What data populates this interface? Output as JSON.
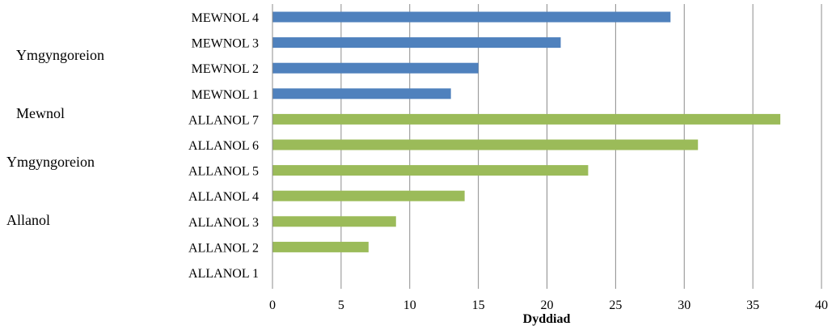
{
  "chart_data": {
    "type": "bar",
    "orientation": "horizontal",
    "title": "",
    "xlabel": "Dyddiad",
    "ylabel": "",
    "xlim": [
      0,
      40
    ],
    "x_ticks": [
      0,
      5,
      10,
      15,
      20,
      25,
      30,
      35,
      40
    ],
    "grid": "vertical",
    "legend": "none",
    "groups": [
      {
        "label_line1": "Ymgyngoreion",
        "label_line2": "Mewnol",
        "color": "#4F81BD"
      },
      {
        "label_line1": "Ymgyngoreion",
        "label_line2": "Allanol",
        "color": "#9BBB59"
      }
    ],
    "categories": [
      "MEWNOL 4",
      "MEWNOL 3",
      "MEWNOL 2",
      "MEWNOL 1",
      "ALLANOL 7",
      "ALLANOL 6",
      "ALLANOL 5",
      "ALLANOL 4",
      "ALLANOL 3",
      "ALLANOL 2",
      "ALLANOL 1"
    ],
    "values": [
      29,
      21,
      15,
      13,
      37,
      31,
      23,
      14,
      9,
      7,
      0
    ],
    "category_group": [
      0,
      0,
      0,
      0,
      1,
      1,
      1,
      1,
      1,
      1,
      1
    ]
  }
}
